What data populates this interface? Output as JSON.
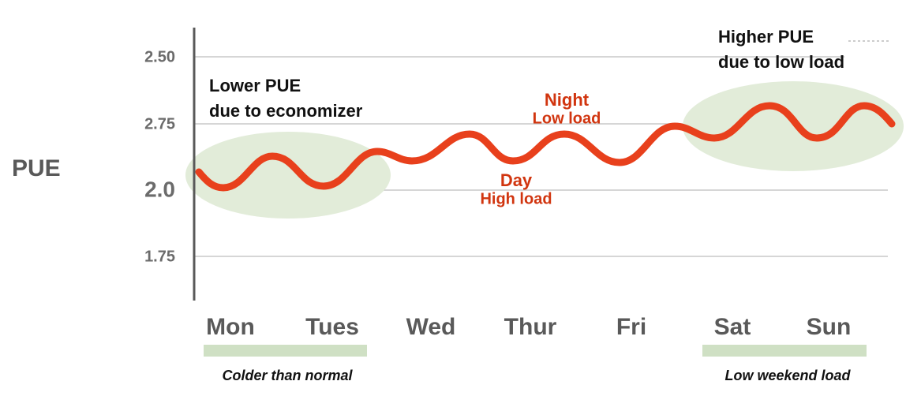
{
  "axis_label": "PUE",
  "y_labels": [
    "2.50",
    "2.75",
    "2.0",
    "1.75"
  ],
  "days": [
    "Mon",
    "Tues",
    "Wed",
    "Thur",
    "Fri",
    "Sat",
    "Sun"
  ],
  "annotations": {
    "left": [
      "Lower PUE",
      "due to economizer"
    ],
    "right": [
      "Higher PUE",
      "due to low load"
    ],
    "night": [
      "Night",
      "Low load"
    ],
    "day": [
      "Day",
      "High load"
    ]
  },
  "captions": [
    "Colder than normal",
    "Low weekend load"
  ]
}
